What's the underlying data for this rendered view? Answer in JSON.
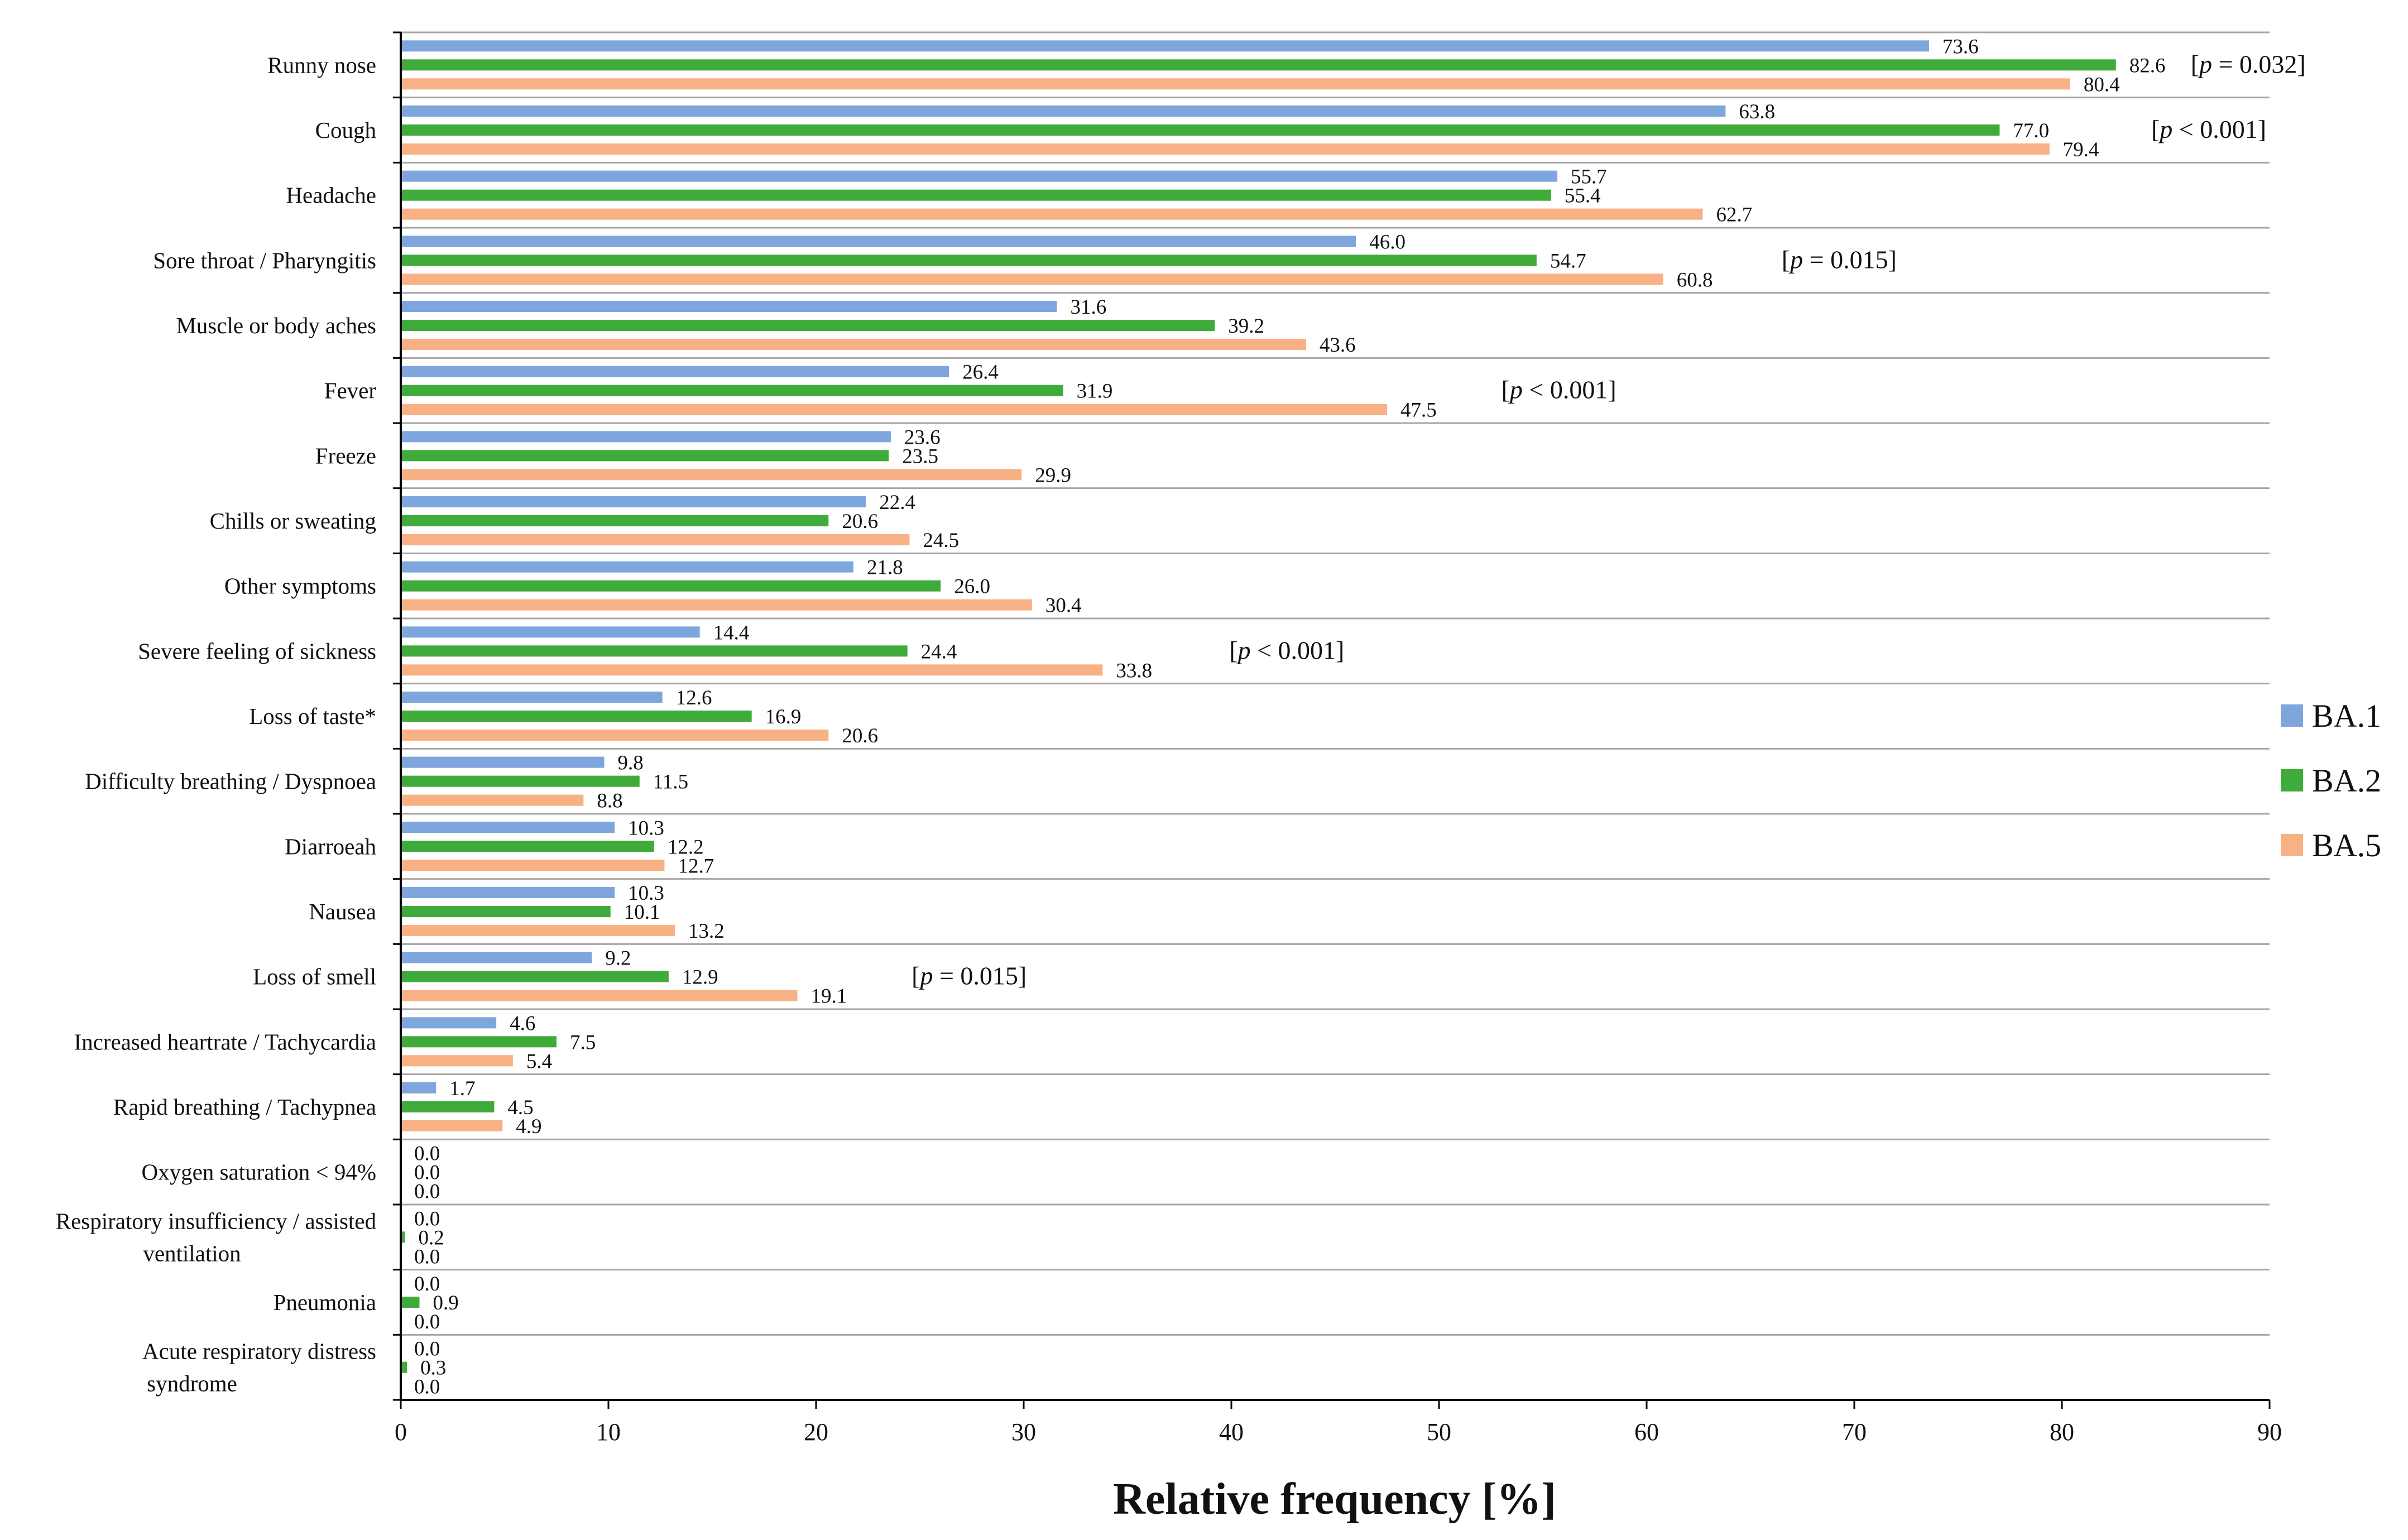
{
  "chart_data": {
    "type": "bar",
    "orientation": "horizontal",
    "title": "",
    "xlabel": "Relative frequency [%]",
    "ylabel": "",
    "xlim": [
      0,
      90
    ],
    "x_ticks": [
      0,
      10,
      20,
      30,
      40,
      50,
      60,
      70,
      80,
      90
    ],
    "grid": "horizontal separators",
    "legend_position": "right",
    "colors": {
      "BA.1": "#7ea6dc",
      "BA.2": "#3fab3a",
      "BA.5": "#f8b185"
    },
    "categories": [
      [
        "Runny nose"
      ],
      [
        "Cough"
      ],
      [
        "Headache"
      ],
      [
        "Sore throat / Pharyngitis"
      ],
      [
        "Muscle or body aches"
      ],
      [
        "Fever"
      ],
      [
        "Freeze"
      ],
      [
        "Chills or sweating"
      ],
      [
        "Other symptoms"
      ],
      [
        "Severe feeling of sickness"
      ],
      [
        "Loss of taste*"
      ],
      [
        "Difficulty breathing / Dyspnoea"
      ],
      [
        "Diarroeah"
      ],
      [
        "Nausea"
      ],
      [
        "Loss of smell"
      ],
      [
        "Increased heartrate / Tachycardia"
      ],
      [
        "Rapid breathing / Tachypnea"
      ],
      [
        "Oxygen saturation < 94%"
      ],
      [
        "Respiratory insufficiency / assisted",
        "ventilation"
      ],
      [
        "Pneumonia"
      ],
      [
        "Acute respiratory distress",
        "syndrome"
      ]
    ],
    "series": [
      {
        "name": "BA.1",
        "values": [
          73.6,
          63.8,
          55.7,
          46.0,
          31.6,
          26.4,
          23.6,
          22.4,
          21.8,
          14.4,
          12.6,
          9.8,
          10.3,
          10.3,
          9.2,
          4.6,
          1.7,
          0.0,
          0.0,
          0.0,
          0.0
        ]
      },
      {
        "name": "BA.2",
        "values": [
          82.6,
          77.0,
          55.4,
          54.7,
          39.2,
          31.9,
          23.5,
          20.6,
          26.0,
          24.4,
          16.9,
          11.5,
          12.2,
          10.1,
          12.9,
          7.5,
          4.5,
          0.0,
          0.2,
          0.9,
          0.3
        ]
      },
      {
        "name": "BA.5",
        "values": [
          80.4,
          79.4,
          62.7,
          60.8,
          43.6,
          47.5,
          29.9,
          24.5,
          30.4,
          33.8,
          20.6,
          8.8,
          12.7,
          13.2,
          19.1,
          5.4,
          4.9,
          0.0,
          0.0,
          0.0,
          0.0
        ]
      }
    ],
    "annotations": [
      {
        "category": "Runny nose",
        "at_value": 86.2,
        "prefix": "[",
        "italic": "p",
        "suffix": " = 0.032]"
      },
      {
        "category": "Cough",
        "at_value": 84.3,
        "prefix": "[",
        "italic": "p",
        "suffix": " < 0.001]"
      },
      {
        "category": "Sore throat / Pharyngitis",
        "at_value": 66.5,
        "prefix": "[",
        "italic": "p",
        "suffix": " = 0.015]"
      },
      {
        "category": "Fever",
        "at_value": 53.0,
        "prefix": "[",
        "italic": "p",
        "suffix": " < 0.001]"
      },
      {
        "category": "Severe feeling of sickness",
        "at_value": 39.9,
        "prefix": "[",
        "italic": "p",
        "suffix": " < 0.001]"
      },
      {
        "category": "Loss of smell",
        "at_value": 24.6,
        "prefix": "[",
        "italic": "p",
        "suffix": " = 0.015]"
      }
    ]
  }
}
